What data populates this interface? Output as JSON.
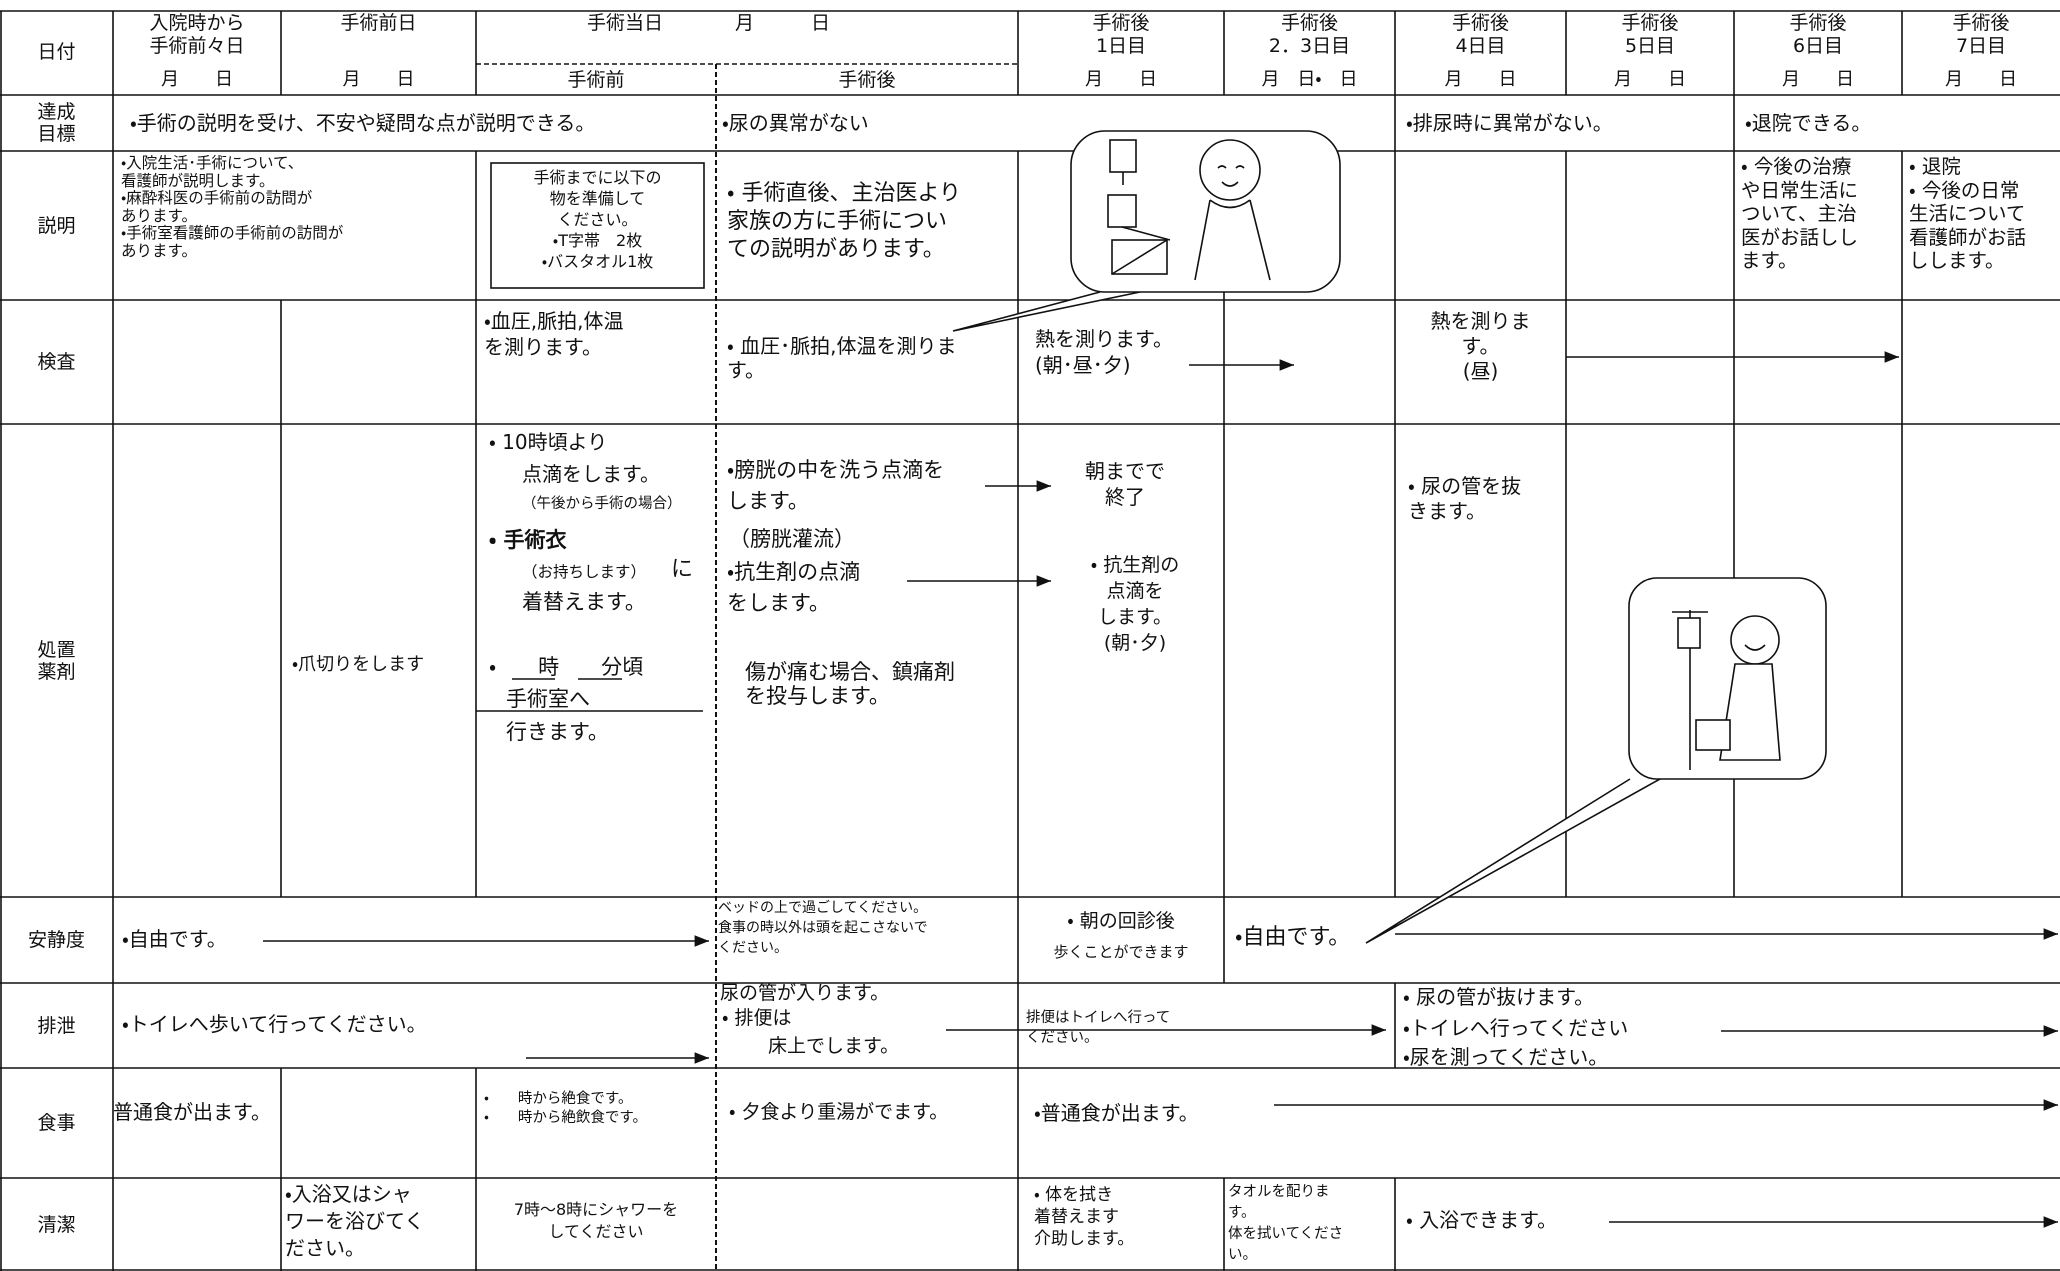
{
  "header": {
    "date_label": "日付",
    "columns": [
      {
        "title": "入院時から\n手術前々日",
        "date": "月　　日"
      },
      {
        "title": "手術前日",
        "date": "月　　日"
      },
      {
        "title": "手術後\n1日目",
        "date": "月　　日"
      },
      {
        "title": "手術後\n2．3日目",
        "date": "月　日・　日"
      },
      {
        "title": "手術後\n4日目",
        "date": "月　　日"
      },
      {
        "title": "手術後\n5日目",
        "date": "月　　日"
      },
      {
        "title": "手術後\n6日目",
        "date": "月　　日"
      },
      {
        "title": "手術後\n7日目",
        "date": "月　　日"
      }
    ],
    "surgery_day": {
      "title": "手術当日",
      "date": "月　　　日",
      "before": "手術前",
      "after": "手術後"
    }
  },
  "goals": {
    "label": "達成\n目標",
    "items": [
      "・手術の説明を受け、不安や疑問な点が説明できる。",
      "・尿の異常がない",
      "・排尿時に異常がない。",
      "・退院できる。"
    ]
  },
  "explanation": {
    "label": "説明",
    "admission": "・入院生活･手術について、\n看護師が説明します。\n・麻酔科医の手術前の訪問が\nあります。\n・手術室看護師の手術前の訪問が\nあります。",
    "preparation": "手術までに以下の\n物を準備して\nください。\n・T字帯　2枚\n・バスタオル1枚",
    "after_surgery": "・ 手術直後、主治医より\n家族の方に手術につい\nての説明があります。",
    "day6": "・ 今後の治療\nや日常生活に\nついて、主治\n医がお話しし\nます。",
    "day7": "・ 退院\n・ 今後の日常\n生活について\n看護師がお話\nしします。"
  },
  "inspection": {
    "label": "検査",
    "before_surgery": "・血圧,脈拍,体温\nを測ります。",
    "after_surgery": "・ 血圧･脈拍,体温を測りま\nす。",
    "day1": "熱を測ります。\n(朝･昼･夕)",
    "day4": "熱を測りま\nす。\n(昼)"
  },
  "treatment": {
    "label": "処置\n薬剤",
    "day_before": "・爪切りをします",
    "before_surgery": [
      "・ 10時頃より",
      "点滴をします。",
      "（午後から手術の場合）",
      "・ 手術衣",
      "（お持ちします）",
      "に",
      "着替えます。",
      "・　　時　　分頃",
      "手術室へ",
      "行きます。"
    ],
    "after_surgery": [
      "・膀胱の中を洗う点滴を\nします。",
      "（膀胱灌流）",
      "・抗生剤の点滴\nをします。",
      "傷が痛む場合、鎮痛剤\nを投与します。"
    ],
    "day1": [
      "朝までで\n終了",
      "・ 抗生剤の\n点滴を\nします。\n(朝･夕)"
    ],
    "day4": "・ 尿の管を抜\nきます。"
  },
  "activity": {
    "label": "安静度",
    "admission": "・自由です。",
    "after_surgery": "ベッドの上で過ごしてください。\n食事の時以外は頭を起こさないで\nください。",
    "day1": [
      "・ 朝の回診後",
      "歩くことができます"
    ],
    "day2_3": "・自由です。"
  },
  "excretion": {
    "label": "排泄",
    "admission": "・トイレへ歩いて行ってください。",
    "after_surgery": [
      "尿の管が入ります。",
      "・ 排便は",
      "床上でします。"
    ],
    "day1": "排便はトイレへ行って\nください。",
    "day4": [
      "・ 尿の管が抜けます。",
      "・トイレへ行ってください",
      "・尿を測ってください。"
    ]
  },
  "meal": {
    "label": "食事",
    "admission": "普通食が出ます。",
    "before_surgery": "・　　時から絶食です。\n・　　時から絶飲食です。",
    "after_surgery": "・ 夕食より重湯がでます。",
    "day1": "・普通食が出ます。"
  },
  "hygiene": {
    "label": "清潔",
    "day_before": "・入浴又はシャ\nワーを浴びてく\nださい。",
    "before_surgery": "7時～8時にシャワーを\nしてください",
    "day1": "・ 体を拭き\n着替えます\n介助します。",
    "day2_3": "タオルを配りま\nす。\n体を拭いてくださ\nい。",
    "day4": "・ 入浴できます。"
  }
}
